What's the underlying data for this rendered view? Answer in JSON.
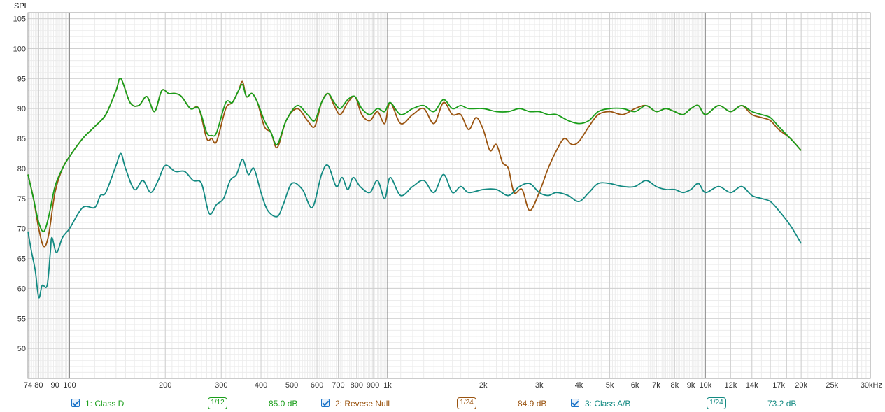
{
  "chart_data": {
    "type": "line",
    "title": "",
    "ylabel": "SPL",
    "xlabel": "",
    "x_scale": "log",
    "xlim": [
      74,
      33000
    ],
    "ylim": [
      45,
      106
    ],
    "grid": true,
    "y_ticks": [
      "105",
      "100",
      "95",
      "90",
      "85",
      "80",
      "75",
      "70",
      "65",
      "60",
      "55",
      "50"
    ],
    "y_tick_values": [
      105,
      100,
      95,
      90,
      85,
      80,
      75,
      70,
      65,
      60,
      55,
      50
    ],
    "x_ticks": [
      {
        "label": "74",
        "value": 74
      },
      {
        "label": "80",
        "value": 80
      },
      {
        "label": "90",
        "value": 90
      },
      {
        "label": "100",
        "value": 100
      },
      {
        "label": "200",
        "value": 200
      },
      {
        "label": "300",
        "value": 300
      },
      {
        "label": "400",
        "value": 400
      },
      {
        "label": "500",
        "value": 500
      },
      {
        "label": "600",
        "value": 600
      },
      {
        "label": "700",
        "value": 700
      },
      {
        "label": "800",
        "value": 800
      },
      {
        "label": "900",
        "value": 900
      },
      {
        "label": "1k",
        "value": 1000
      },
      {
        "label": "2k",
        "value": 2000
      },
      {
        "label": "3k",
        "value": 3000
      },
      {
        "label": "4k",
        "value": 4000
      },
      {
        "label": "5k",
        "value": 5000
      },
      {
        "label": "6k",
        "value": 6000
      },
      {
        "label": "7k",
        "value": 7000
      },
      {
        "label": "8k",
        "value": 8000
      },
      {
        "label": "9k",
        "value": 9000
      },
      {
        "label": "10k",
        "value": 10000
      },
      {
        "label": "12k",
        "value": 12000
      },
      {
        "label": "14k",
        "value": 14000
      },
      {
        "label": "17k",
        "value": 17000
      },
      {
        "label": "20k",
        "value": 20000
      },
      {
        "label": "25k",
        "value": 25000
      },
      {
        "label": "30kHz",
        "value": 30000
      }
    ],
    "series": [
      {
        "name": "1: Class D",
        "color": "#1a9e1a",
        "smoothing": "1/12",
        "level": "85.0 dB",
        "points": [
          [
            74,
            79
          ],
          [
            77,
            75
          ],
          [
            80,
            71
          ],
          [
            83,
            69.5
          ],
          [
            86,
            72
          ],
          [
            90,
            77
          ],
          [
            95,
            80
          ],
          [
            100,
            82
          ],
          [
            110,
            85
          ],
          [
            120,
            87
          ],
          [
            130,
            89
          ],
          [
            140,
            93
          ],
          [
            145,
            95
          ],
          [
            155,
            91
          ],
          [
            165,
            90.5
          ],
          [
            175,
            92
          ],
          [
            185,
            89.5
          ],
          [
            195,
            93
          ],
          [
            205,
            92.5
          ],
          [
            215,
            92.5
          ],
          [
            225,
            92
          ],
          [
            240,
            90
          ],
          [
            255,
            90
          ],
          [
            270,
            86
          ],
          [
            280,
            85.5
          ],
          [
            290,
            86
          ],
          [
            310,
            91
          ],
          [
            325,
            91
          ],
          [
            340,
            93
          ],
          [
            350,
            94
          ],
          [
            360,
            92
          ],
          [
            375,
            92.5
          ],
          [
            390,
            91
          ],
          [
            410,
            88
          ],
          [
            430,
            86
          ],
          [
            450,
            84
          ],
          [
            480,
            88
          ],
          [
            520,
            90.5
          ],
          [
            560,
            89
          ],
          [
            590,
            88
          ],
          [
            620,
            91
          ],
          [
            650,
            92.5
          ],
          [
            680,
            91
          ],
          [
            710,
            90
          ],
          [
            750,
            91.5
          ],
          [
            790,
            92
          ],
          [
            830,
            90
          ],
          [
            880,
            89
          ],
          [
            930,
            90
          ],
          [
            980,
            89.5
          ],
          [
            1020,
            91
          ],
          [
            1100,
            89
          ],
          [
            1200,
            90
          ],
          [
            1300,
            90.5
          ],
          [
            1400,
            89.5
          ],
          [
            1500,
            91.5
          ],
          [
            1600,
            90
          ],
          [
            1700,
            90.5
          ],
          [
            1800,
            90
          ],
          [
            2000,
            90
          ],
          [
            2200,
            89.5
          ],
          [
            2400,
            89.5
          ],
          [
            2600,
            90
          ],
          [
            2800,
            89.5
          ],
          [
            3000,
            89.5
          ],
          [
            3200,
            89
          ],
          [
            3400,
            89
          ],
          [
            3700,
            88
          ],
          [
            4000,
            87.5
          ],
          [
            4300,
            88
          ],
          [
            4600,
            89.5
          ],
          [
            5000,
            90
          ],
          [
            5500,
            90
          ],
          [
            6000,
            89.5
          ],
          [
            6500,
            90.5
          ],
          [
            7000,
            89.5
          ],
          [
            7500,
            90
          ],
          [
            8000,
            89.5
          ],
          [
            8500,
            89
          ],
          [
            9000,
            90
          ],
          [
            9500,
            90.5
          ],
          [
            10000,
            89
          ],
          [
            11000,
            90.5
          ],
          [
            12000,
            89.5
          ],
          [
            13000,
            90.5
          ],
          [
            14000,
            89.5
          ],
          [
            15000,
            89
          ],
          [
            16000,
            88.5
          ],
          [
            17000,
            87
          ],
          [
            18500,
            85
          ],
          [
            20000,
            83
          ]
        ]
      },
      {
        "name": "2: Revese Null",
        "color": "#9a5410",
        "smoothing": "1/24",
        "level": "84.9 dB",
        "points": [
          [
            74,
            79
          ],
          [
            77,
            75
          ],
          [
            80,
            70
          ],
          [
            83,
            67
          ],
          [
            86,
            69
          ],
          [
            90,
            76
          ],
          [
            95,
            80
          ],
          [
            100,
            82
          ],
          [
            110,
            85
          ],
          [
            120,
            87
          ],
          [
            130,
            89
          ],
          [
            140,
            93
          ],
          [
            145,
            95
          ],
          [
            155,
            91
          ],
          [
            165,
            90.5
          ],
          [
            175,
            92
          ],
          [
            185,
            89.5
          ],
          [
            195,
            93
          ],
          [
            205,
            92.5
          ],
          [
            215,
            92.5
          ],
          [
            225,
            92
          ],
          [
            240,
            90
          ],
          [
            255,
            90
          ],
          [
            270,
            85
          ],
          [
            280,
            85
          ],
          [
            290,
            84.5
          ],
          [
            310,
            90
          ],
          [
            325,
            91
          ],
          [
            340,
            93
          ],
          [
            350,
            94.5
          ],
          [
            360,
            92
          ],
          [
            375,
            92.5
          ],
          [
            390,
            91
          ],
          [
            410,
            87
          ],
          [
            430,
            86
          ],
          [
            450,
            83.5
          ],
          [
            480,
            88
          ],
          [
            520,
            90
          ],
          [
            560,
            88
          ],
          [
            590,
            87
          ],
          [
            620,
            91
          ],
          [
            650,
            92.5
          ],
          [
            680,
            90.5
          ],
          [
            710,
            89
          ],
          [
            750,
            91
          ],
          [
            790,
            92
          ],
          [
            830,
            89
          ],
          [
            880,
            88
          ],
          [
            930,
            89.5
          ],
          [
            980,
            87.5
          ],
          [
            1020,
            91
          ],
          [
            1100,
            87.5
          ],
          [
            1200,
            89
          ],
          [
            1300,
            90
          ],
          [
            1400,
            87.5
          ],
          [
            1500,
            91
          ],
          [
            1600,
            89
          ],
          [
            1700,
            89
          ],
          [
            1800,
            86.5
          ],
          [
            1900,
            88.5
          ],
          [
            2000,
            86.5
          ],
          [
            2100,
            83
          ],
          [
            2200,
            84
          ],
          [
            2300,
            81
          ],
          [
            2400,
            80
          ],
          [
            2500,
            76
          ],
          [
            2650,
            76.5
          ],
          [
            2800,
            73
          ],
          [
            3000,
            76
          ],
          [
            3200,
            80
          ],
          [
            3400,
            83
          ],
          [
            3600,
            85
          ],
          [
            3800,
            84
          ],
          [
            4000,
            84.5
          ],
          [
            4300,
            87
          ],
          [
            4600,
            89
          ],
          [
            5000,
            89.5
          ],
          [
            5500,
            89
          ],
          [
            6000,
            90
          ],
          [
            6500,
            90.5
          ],
          [
            7000,
            89.5
          ],
          [
            7500,
            90
          ],
          [
            8000,
            89.5
          ],
          [
            8500,
            89
          ],
          [
            9000,
            90
          ],
          [
            9500,
            90.5
          ],
          [
            10000,
            89
          ],
          [
            11000,
            90.5
          ],
          [
            12000,
            89.5
          ],
          [
            13000,
            90.5
          ],
          [
            14000,
            89
          ],
          [
            15000,
            88.5
          ],
          [
            16000,
            88
          ],
          [
            17000,
            86.5
          ],
          [
            18500,
            85
          ],
          [
            20000,
            83
          ]
        ]
      },
      {
        "name": "3: Class A/B",
        "color": "#138a82",
        "smoothing": "1/24",
        "level": "73.2 dB",
        "points": [
          [
            74,
            69.5
          ],
          [
            76,
            66
          ],
          [
            78,
            63
          ],
          [
            80,
            58.5
          ],
          [
            82,
            60.5
          ],
          [
            85,
            60.5
          ],
          [
            87,
            66
          ],
          [
            88,
            68.5
          ],
          [
            91,
            66
          ],
          [
            95,
            68.5
          ],
          [
            100,
            70
          ],
          [
            110,
            73.5
          ],
          [
            120,
            73.5
          ],
          [
            125,
            75.5
          ],
          [
            130,
            76
          ],
          [
            140,
            80.5
          ],
          [
            145,
            82.5
          ],
          [
            150,
            80
          ],
          [
            160,
            76.5
          ],
          [
            170,
            78
          ],
          [
            180,
            76
          ],
          [
            190,
            78
          ],
          [
            200,
            80.5
          ],
          [
            215,
            79.5
          ],
          [
            230,
            79.5
          ],
          [
            245,
            78
          ],
          [
            260,
            77.5
          ],
          [
            275,
            72.5
          ],
          [
            290,
            74
          ],
          [
            305,
            75
          ],
          [
            320,
            78
          ],
          [
            335,
            79
          ],
          [
            350,
            81.5
          ],
          [
            365,
            79
          ],
          [
            380,
            80
          ],
          [
            400,
            76
          ],
          [
            420,
            73
          ],
          [
            450,
            72
          ],
          [
            470,
            74
          ],
          [
            500,
            77.5
          ],
          [
            540,
            76.5
          ],
          [
            580,
            73.5
          ],
          [
            620,
            79
          ],
          [
            650,
            80.5
          ],
          [
            690,
            77
          ],
          [
            720,
            78.5
          ],
          [
            750,
            76.5
          ],
          [
            780,
            78.5
          ],
          [
            820,
            77
          ],
          [
            880,
            76
          ],
          [
            930,
            78
          ],
          [
            980,
            75
          ],
          [
            1020,
            78.5
          ],
          [
            1100,
            75.5
          ],
          [
            1200,
            77
          ],
          [
            1300,
            78
          ],
          [
            1400,
            76
          ],
          [
            1500,
            79
          ],
          [
            1600,
            76
          ],
          [
            1700,
            77
          ],
          [
            1800,
            76
          ],
          [
            2000,
            76.5
          ],
          [
            2200,
            76.5
          ],
          [
            2400,
            75.5
          ],
          [
            2600,
            77
          ],
          [
            2800,
            77.5
          ],
          [
            3000,
            76
          ],
          [
            3200,
            75.5
          ],
          [
            3400,
            76
          ],
          [
            3700,
            75.5
          ],
          [
            4000,
            74.5
          ],
          [
            4300,
            76
          ],
          [
            4600,
            77.5
          ],
          [
            5000,
            77.5
          ],
          [
            5500,
            77
          ],
          [
            6000,
            77
          ],
          [
            6500,
            78
          ],
          [
            7000,
            77
          ],
          [
            7500,
            76.5
          ],
          [
            8000,
            76.5
          ],
          [
            8500,
            76
          ],
          [
            9000,
            76.5
          ],
          [
            9500,
            77.5
          ],
          [
            10000,
            76
          ],
          [
            11000,
            77
          ],
          [
            12000,
            76
          ],
          [
            13000,
            77
          ],
          [
            14000,
            75.5
          ],
          [
            15000,
            75
          ],
          [
            16000,
            74.5
          ],
          [
            17000,
            73
          ],
          [
            18500,
            70.5
          ],
          [
            20000,
            67.5
          ]
        ]
      }
    ]
  },
  "legend": {
    "items": [
      {
        "label": "1: Class D",
        "smoothing": "1/12",
        "level": "85.0 dB",
        "color": "#1a9e1a"
      },
      {
        "label": "2: Revese Null",
        "smoothing": "1/24",
        "level": "84.9 dB",
        "color": "#9a5410"
      },
      {
        "label": "3: Class A/B",
        "smoothing": "1/24",
        "level": "73.2 dB",
        "color": "#138a82"
      }
    ]
  }
}
